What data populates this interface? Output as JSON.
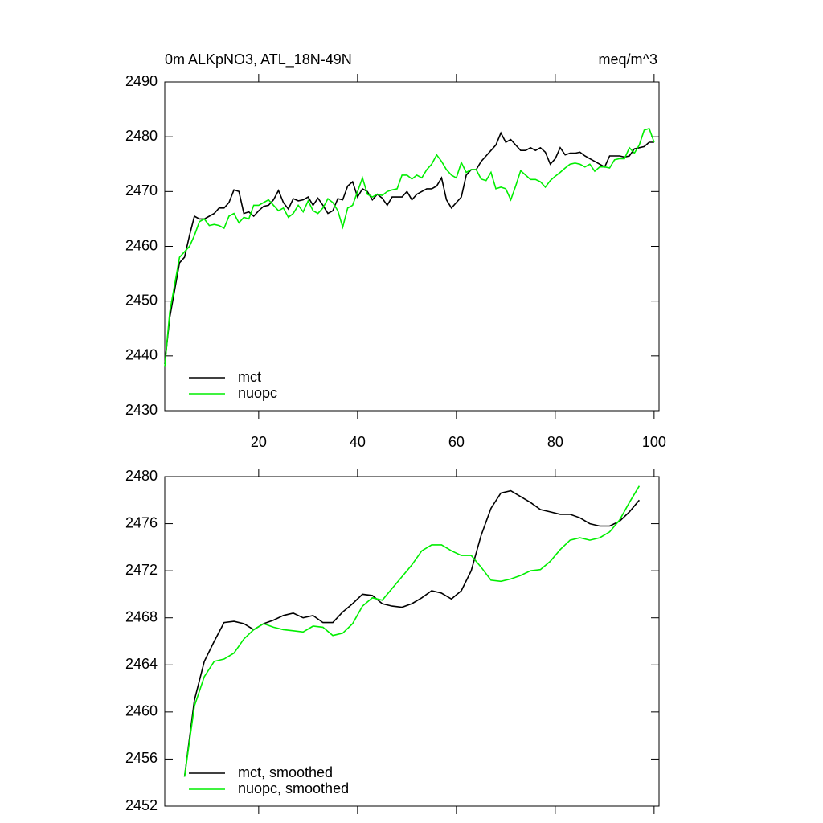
{
  "chart_data": [
    {
      "type": "line",
      "title": "0m ALKpNO3, ATL_18N-49N",
      "subtitle": "meq/m^3",
      "x": [
        1,
        2,
        3,
        4,
        5,
        6,
        7,
        8,
        9,
        10,
        11,
        12,
        13,
        14,
        15,
        16,
        17,
        18,
        19,
        20,
        21,
        22,
        23,
        24,
        25,
        26,
        27,
        28,
        29,
        30,
        31,
        32,
        33,
        34,
        35,
        36,
        37,
        38,
        39,
        40,
        41,
        42,
        43,
        44,
        45,
        46,
        47,
        48,
        49,
        50,
        51,
        52,
        53,
        54,
        55,
        56,
        57,
        58,
        59,
        60,
        61,
        62,
        63,
        64,
        65,
        66,
        67,
        68,
        69,
        70,
        71,
        72,
        73,
        74,
        75,
        76,
        77,
        78,
        79,
        80,
        81,
        82,
        83,
        84,
        85,
        86,
        87,
        88,
        89,
        90,
        91,
        92,
        93,
        94,
        95,
        96,
        97,
        98,
        99,
        100
      ],
      "series": [
        {
          "name": "mct",
          "color": "#000000",
          "values": [
            2438.5,
            2447,
            2452,
            2457,
            2458,
            2462,
            2465.5,
            2465,
            2465,
            2465.5,
            2466,
            2467,
            2467,
            2468,
            2470.3,
            2470,
            2466,
            2466.3,
            2465.5,
            2466.5,
            2467.3,
            2467.5,
            2468.5,
            2470.2,
            2468,
            2466.8,
            2468.7,
            2468.3,
            2468.5,
            2469,
            2467.5,
            2468.8,
            2467.5,
            2466,
            2466.5,
            2468.7,
            2468.5,
            2471,
            2471.8,
            2469,
            2470.5,
            2470,
            2468.5,
            2469.5,
            2468.8,
            2467.5,
            2469,
            2469,
            2469,
            2470,
            2468.5,
            2469.5,
            2470,
            2470.5,
            2470.5,
            2471,
            2472.5,
            2468.5,
            2467,
            2468,
            2469,
            2473,
            2474,
            2474,
            2475.5,
            2476.5,
            2477.5,
            2478.5,
            2480.7,
            2479,
            2479.5,
            2478.5,
            2477.5,
            2477.5,
            2478,
            2477.5,
            2478,
            2477.2,
            2475,
            2476,
            2478,
            2476.7,
            2477,
            2477,
            2477.2,
            2476.5,
            2476,
            2475.5,
            2475,
            2474.5,
            2476.5,
            2476.5,
            2476.5,
            2476.3,
            2476.5,
            2477.8,
            2478,
            2478.2,
            2479,
            2479
          ]
        },
        {
          "name": "nuopc",
          "color": "#00ee00",
          "values": [
            2438,
            2448,
            2453,
            2458,
            2459,
            2460,
            2462,
            2464.5,
            2465,
            2463.8,
            2464,
            2463.8,
            2463.3,
            2465.5,
            2466,
            2464.3,
            2465.3,
            2465,
            2467.5,
            2467.5,
            2468,
            2468.5,
            2467.5,
            2466.5,
            2467,
            2465.3,
            2466,
            2467.5,
            2466.3,
            2468.3,
            2466.5,
            2466,
            2467,
            2468.7,
            2468,
            2466.5,
            2463.5,
            2467,
            2467.5,
            2470,
            2472.5,
            2469.5,
            2469,
            2469.5,
            2469.3,
            2470,
            2470.3,
            2470.5,
            2473,
            2473,
            2472.3,
            2473,
            2472.5,
            2474,
            2475,
            2476.7,
            2475.5,
            2474,
            2473,
            2472.5,
            2475.3,
            2473.5,
            2474,
            2474,
            2472.3,
            2472,
            2473.5,
            2470.5,
            2470.8,
            2470.5,
            2468.5,
            2471,
            2473.8,
            2473,
            2472.2,
            2472.2,
            2471.8,
            2470.8,
            2472,
            2472.8,
            2473.5,
            2474.3,
            2475,
            2475.2,
            2475,
            2474.5,
            2475,
            2473.7,
            2474.5,
            2474.5,
            2474.3,
            2475.8,
            2476,
            2476,
            2478,
            2477,
            2478.5,
            2481.2,
            2481.5,
            2479
          ]
        }
      ],
      "xlim": [
        1,
        101
      ],
      "xticks": [
        20,
        40,
        60,
        80,
        100
      ],
      "xtick_labels": true,
      "ylim": [
        2430,
        2490
      ],
      "yticks": [
        2430,
        2440,
        2450,
        2460,
        2470,
        2480,
        2490
      ]
    },
    {
      "type": "line",
      "x": [
        5,
        7,
        9,
        11,
        13,
        15,
        17,
        19,
        21,
        23,
        25,
        27,
        29,
        31,
        33,
        35,
        37,
        39,
        41,
        43,
        45,
        47,
        49,
        51,
        53,
        55,
        57,
        59,
        61,
        63,
        65,
        67,
        69,
        71,
        73,
        75,
        77,
        79,
        81,
        83,
        85,
        87,
        89,
        91,
        93,
        95,
        97
      ],
      "series": [
        {
          "name": "mct, smoothed",
          "color": "#000000",
          "values": [
            2454.5,
            2461,
            2464.3,
            2466,
            2467.6,
            2467.7,
            2467.5,
            2467,
            2467.5,
            2467.8,
            2468.2,
            2468.4,
            2468,
            2468.2,
            2467.6,
            2467.6,
            2468.5,
            2469.2,
            2470,
            2469.9,
            2469.2,
            2469,
            2468.9,
            2469.2,
            2469.7,
            2470.3,
            2470.1,
            2469.6,
            2470.3,
            2472,
            2475,
            2477.3,
            2478.6,
            2478.8,
            2478.3,
            2477.8,
            2477.2,
            2477,
            2476.8,
            2476.8,
            2476.5,
            2476,
            2475.8,
            2475.8,
            2476.2,
            2477,
            2478
          ]
        },
        {
          "name": "nuopc, smoothed",
          "color": "#00ee00",
          "values": [
            2454.5,
            2460.5,
            2463,
            2464.3,
            2464.5,
            2465,
            2466.2,
            2467,
            2467.5,
            2467.2,
            2467,
            2466.9,
            2466.8,
            2467.3,
            2467.2,
            2466.5,
            2466.7,
            2467.5,
            2469,
            2469.7,
            2469.5,
            2470.5,
            2471.5,
            2472.5,
            2473.7,
            2474.2,
            2474.2,
            2473.7,
            2473.3,
            2473.3,
            2472.3,
            2471.2,
            2471.1,
            2471.3,
            2471.6,
            2472,
            2472.1,
            2472.8,
            2473.8,
            2474.6,
            2474.8,
            2474.6,
            2474.8,
            2475.3,
            2476.3,
            2477.8,
            2479.2
          ]
        }
      ],
      "xlim": [
        1,
        101
      ],
      "xticks": [
        20,
        40,
        60,
        80,
        100
      ],
      "xtick_labels": false,
      "ylim": [
        2452,
        2480
      ],
      "yticks": [
        2452,
        2456,
        2460,
        2464,
        2468,
        2472,
        2476,
        2480
      ]
    }
  ]
}
